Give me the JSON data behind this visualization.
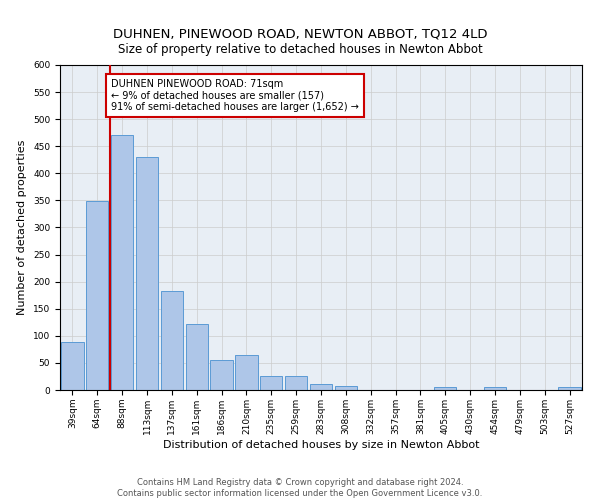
{
  "title": "DUHNEN, PINEWOOD ROAD, NEWTON ABBOT, TQ12 4LD",
  "subtitle": "Size of property relative to detached houses in Newton Abbot",
  "xlabel": "Distribution of detached houses by size in Newton Abbot",
  "ylabel": "Number of detached properties",
  "categories": [
    "39sqm",
    "64sqm",
    "88sqm",
    "113sqm",
    "137sqm",
    "161sqm",
    "186sqm",
    "210sqm",
    "235sqm",
    "259sqm",
    "283sqm",
    "308sqm",
    "332sqm",
    "357sqm",
    "381sqm",
    "405sqm",
    "430sqm",
    "454sqm",
    "479sqm",
    "503sqm",
    "527sqm"
  ],
  "values": [
    88,
    348,
    470,
    430,
    182,
    122,
    55,
    65,
    25,
    25,
    12,
    8,
    0,
    0,
    0,
    5,
    0,
    5,
    0,
    0,
    5
  ],
  "bar_color": "#aec6e8",
  "bar_edge_color": "#5b9bd5",
  "redline_x": 1.5,
  "annotation_text": "DUHNEN PINEWOOD ROAD: 71sqm\n← 9% of detached houses are smaller (157)\n91% of semi-detached houses are larger (1,652) →",
  "annotation_box_color": "#ffffff",
  "annotation_box_edge_color": "#cc0000",
  "redline_color": "#cc0000",
  "ylim": [
    0,
    600
  ],
  "yticks": [
    0,
    50,
    100,
    150,
    200,
    250,
    300,
    350,
    400,
    450,
    500,
    550,
    600
  ],
  "footer": "Contains HM Land Registry data © Crown copyright and database right 2024.\nContains public sector information licensed under the Open Government Licence v3.0.",
  "title_fontsize": 9.5,
  "subtitle_fontsize": 8.5,
  "xlabel_fontsize": 8,
  "ylabel_fontsize": 8,
  "tick_fontsize": 6.5,
  "annotation_fontsize": 7,
  "footer_fontsize": 6
}
